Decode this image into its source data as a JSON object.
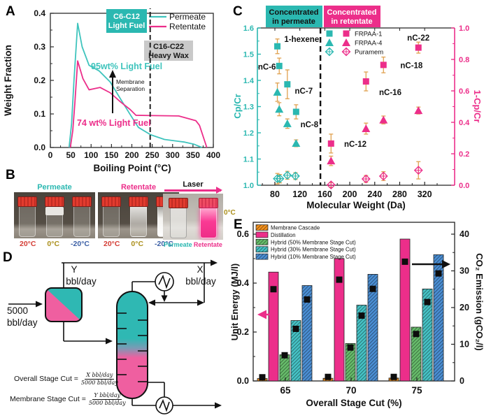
{
  "figure": {
    "panel_labels": {
      "a": "A",
      "b": "B",
      "c": "C",
      "d": "D",
      "e": "E"
    }
  },
  "colors": {
    "teal": "#2BB8B1",
    "teal_line": "#3FC4BD",
    "pink": "#EC2E8A",
    "gray_box": "#C9C9C9",
    "error_bar": "#E0A14F",
    "diagram_teal": "#2FB8B3",
    "diagram_pink": "#EF5FA0"
  },
  "panel_b": {
    "groups": [
      {
        "title": "Permeate",
        "temps": [
          "20°C",
          "0°C",
          "-20°C"
        ]
      },
      {
        "title": "Retentate",
        "temps": [
          "20°C",
          "0°C",
          "-20°C"
        ]
      },
      {
        "title": "Laser",
        "side_temp": "0°C",
        "vial_labels": [
          "Permeate",
          "Retentate"
        ]
      }
    ]
  },
  "panel_d": {
    "feed_line1": "5000",
    "feed_line2": "bbl/day",
    "top_left_line1": "Y",
    "top_left_line2": "bbl/day",
    "top_right_line1": "X",
    "top_right_line2": "bbl/day",
    "formula1_lhs": "Overall Stage Cut =",
    "formula1_num": "X bbl/day",
    "formula1_den": "5000 bbl/day",
    "formula2_lhs": "Membrane Stage Cut =",
    "formula2_num": "Y bbl/day",
    "formula2_den": "5000 bbl/day"
  },
  "chart_data": [
    {
      "panel": "A",
      "type": "line",
      "xlabel": "Boiling Point (°C)",
      "ylabel": "Weight Fraction",
      "xlim": [
        0,
        400
      ],
      "ylim": [
        0,
        0.4
      ],
      "xticks": [
        0,
        50,
        100,
        150,
        200,
        250,
        300,
        350,
        400
      ],
      "yticks": [
        0,
        0.1,
        0.2,
        0.3,
        0.4
      ],
      "dashed_vline_x": 245,
      "annotations": {
        "light_fuel_box": [
          "C6-C12",
          "Light Fuel"
        ],
        "heavy_wax_box": [
          "C16-C22",
          "Heavy Wax"
        ],
        "permeate_note": "95wt% Light Fuel",
        "retentate_note": "74 wt% Light Fuel",
        "membrane_arrow": [
          "Membrane",
          "Separation"
        ]
      },
      "series": [
        {
          "name": "Permeate",
          "color": "#3FC4BD",
          "points": [
            [
              46,
              0
            ],
            [
              52,
              0.07
            ],
            [
              58,
              0.2
            ],
            [
              67,
              0.37
            ],
            [
              78,
              0.3
            ],
            [
              95,
              0.245
            ],
            [
              120,
              0.228
            ],
            [
              147,
              0.195
            ],
            [
              172,
              0.145
            ],
            [
              196,
              0.098
            ],
            [
              216,
              0.06
            ],
            [
              246,
              0.038
            ],
            [
              280,
              0.024
            ],
            [
              330,
              0.016
            ],
            [
              352,
              0.01
            ],
            [
              372,
              0
            ]
          ]
        },
        {
          "name": "Retentate",
          "color": "#EC2E8A",
          "points": [
            [
              49,
              0
            ],
            [
              55,
              0.05
            ],
            [
              60,
              0.13
            ],
            [
              67,
              0.258
            ],
            [
              80,
              0.205
            ],
            [
              95,
              0.172
            ],
            [
              122,
              0.179
            ],
            [
              147,
              0.163
            ],
            [
              172,
              0.136
            ],
            [
              196,
              0.113
            ],
            [
              210,
              0.096
            ],
            [
              255,
              0.095
            ],
            [
              315,
              0.094
            ],
            [
              357,
              0.08
            ],
            [
              366,
              0.066
            ],
            [
              384,
              0
            ]
          ]
        }
      ]
    },
    {
      "panel": "C",
      "type": "scatter",
      "xlabel": "Molecular Weight (Da)",
      "ylabel_left": "Cp/Cr",
      "ylabel_right": "1-Cp/Cr",
      "xlim": [
        52,
        368
      ],
      "ylim_left": [
        1.0,
        1.6
      ],
      "ylim_right": [
        0,
        1.0
      ],
      "xticks": [
        80,
        120,
        160,
        200,
        240,
        280,
        320
      ],
      "xminors": [
        60,
        100,
        140,
        180,
        220,
        260,
        300,
        340
      ],
      "yticks_left": [
        1.0,
        1.1,
        1.2,
        1.3,
        1.4,
        1.5,
        1.6
      ],
      "yticks_right": [
        0,
        0.2,
        0.4,
        0.6,
        0.8,
        1.0
      ],
      "dashed_vline_x": 153,
      "headers": {
        "permeate": [
          "Concentrated",
          "in permeate"
        ],
        "retentate": [
          "Concentrated",
          "in retentate"
        ]
      },
      "legend": [
        "FRPAA-1",
        "FRPAA-4",
        "Puramem"
      ],
      "series": [
        {
          "name": "FRPAA-1",
          "marker": "square",
          "permeate": {
            "axis": "left",
            "points": [
              {
                "x": 84,
                "y": 1.53,
                "e": 0.028
              },
              {
                "x": 87,
                "y": 1.455,
                "e": 0.03
              },
              {
                "x": 100,
                "y": 1.385,
                "e": 0.055
              },
              {
                "x": 114,
                "y": 1.28,
                "e": 0.027
              }
            ]
          },
          "retentate": {
            "axis": "right",
            "points": [
              {
                "x": 170,
                "y": 0.265,
                "e": 0.06
              },
              {
                "x": 226,
                "y": 0.66,
                "e": 0.06
              },
              {
                "x": 254,
                "y": 0.765,
                "e": 0.05
              },
              {
                "x": 310,
                "y": 0.875,
                "e": 0.035
              }
            ]
          }
        },
        {
          "name": "FRPAA-4",
          "marker": "triangle",
          "permeate": {
            "axis": "left",
            "points": [
              {
                "x": 84,
                "y": 1.355,
                "e": 0.035
              },
              {
                "x": 87,
                "y": 1.29,
                "e": 0.025
              },
              {
                "x": 100,
                "y": 1.235,
                "e": 0.018
              },
              {
                "x": 114,
                "y": 1.16,
                "e": 0.013
              }
            ]
          },
          "retentate": {
            "axis": "right",
            "points": [
              {
                "x": 170,
                "y": 0.155,
                "e": 0.03
              },
              {
                "x": 226,
                "y": 0.36,
                "e": 0.035
              },
              {
                "x": 254,
                "y": 0.415,
                "e": 0.025
              },
              {
                "x": 310,
                "y": 0.475,
                "e": 0.022
              }
            ]
          }
        },
        {
          "name": "Puramem",
          "marker": "diamond",
          "permeate": {
            "axis": "left",
            "points": [
              {
                "x": 84,
                "y": 1.025,
                "e": 0.02
              },
              {
                "x": 88,
                "y": 1.025,
                "e": 0.016
              },
              {
                "x": 100,
                "y": 1.038,
                "e": 0.015
              },
              {
                "x": 113,
                "y": 1.035,
                "e": 0.013
              }
            ]
          },
          "retentate": {
            "axis": "right",
            "points": [
              {
                "x": 170,
                "y": 0.002,
                "e": 0.015
              },
              {
                "x": 226,
                "y": 0.04,
                "e": 0.022
              },
              {
                "x": 254,
                "y": 0.058,
                "e": 0.028
              },
              {
                "x": 310,
                "y": 0.095,
                "e": 0.055
              }
            ]
          }
        }
      ],
      "point_labels": [
        {
          "text": "1-hexene",
          "axis": "left",
          "x": 95,
          "y": 1.558
        },
        {
          "text": "nC-6",
          "axis": "left",
          "x": 53,
          "y": 1.452
        },
        {
          "text": "nC-7",
          "axis": "left",
          "x": 112,
          "y": 1.36
        },
        {
          "text": "nC-8",
          "axis": "left",
          "x": 121,
          "y": 1.232
        },
        {
          "text": "nC-12",
          "axis": "right",
          "x": 191,
          "y": 0.262
        },
        {
          "text": "nC-16",
          "axis": "right",
          "x": 247,
          "y": 0.592
        },
        {
          "text": "nC-18",
          "axis": "right",
          "x": 281,
          "y": 0.763
        },
        {
          "text": "nC-22",
          "axis": "right",
          "x": 292,
          "y": 0.938
        }
      ]
    },
    {
      "panel": "E",
      "type": "bar",
      "xlabel": "Overall Stage Cut (%)",
      "ylabel_left": "Unit Energy (MJ/l)",
      "ylabel_right": "CO₂ Emission (gCO₂/l)",
      "categories": [
        "65",
        "70",
        "75"
      ],
      "ylim_left": [
        0,
        0.6
      ],
      "ylim_right": [
        0,
        40
      ],
      "yticks_left": [
        0,
        0.2,
        0.4,
        0.6
      ],
      "yticks_right": [
        0,
        10,
        20,
        30,
        40
      ],
      "series": [
        {
          "name": "Membrane Cascade",
          "color": "#F5921E",
          "hatch": true,
          "energy": [
            0.01,
            0.011,
            0.012
          ],
          "co2": [
            1.0,
            1.1,
            1.1
          ]
        },
        {
          "name": "Distillation",
          "color": "#EC2E8A",
          "hatch": false,
          "energy": [
            0.445,
            0.5,
            0.58
          ],
          "co2": [
            25.0,
            27.6,
            32.5
          ]
        },
        {
          "name": "Hybrid (50% Membrane Stage Cut)",
          "color": "#67BD6B",
          "hatch": true,
          "energy": [
            0.107,
            0.153,
            0.22
          ],
          "co2": [
            7.0,
            9.1,
            12.8
          ]
        },
        {
          "name": "Hybrid (30% Membrane Stage Cut)",
          "color": "#46C3C6",
          "hatch": true,
          "energy": [
            0.247,
            0.31,
            0.376
          ],
          "co2": [
            14.2,
            17.8,
            21.5
          ]
        },
        {
          "name": "Hybrid (10% Membrane Stage Cut)",
          "color": "#4B8FD5",
          "hatch": true,
          "energy": [
            0.39,
            0.436,
            0.516
          ],
          "co2": [
            22.2,
            25.1,
            29.3
          ]
        }
      ]
    }
  ]
}
